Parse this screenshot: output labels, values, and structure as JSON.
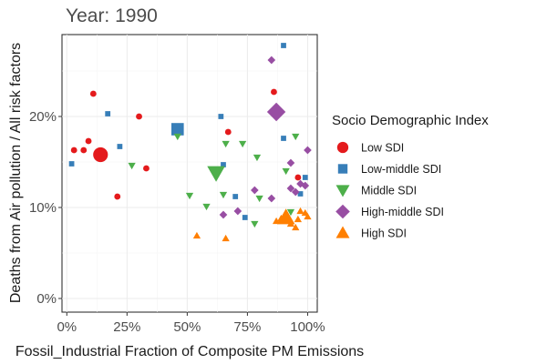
{
  "chart_data": {
    "type": "scatter",
    "title": "Year: 1990",
    "xlabel": "Fossil_Industrial Fraction of Composite PM Emissions",
    "ylabel": "Deaths from Air pollution / All risk factors",
    "xlim": [
      -0.02,
      1.04
    ],
    "ylim": [
      -0.015,
      0.29
    ],
    "x_ticks": [
      0,
      0.25,
      0.5,
      0.75,
      1.0
    ],
    "x_tick_labels": [
      "0%",
      "25%",
      "50%",
      "75%",
      "100%"
    ],
    "y_ticks": [
      0,
      0.1,
      0.2
    ],
    "y_tick_labels": [
      "0%",
      "10%",
      "20%"
    ],
    "grid": true,
    "legend": {
      "title": "Socio Demographic Index",
      "position": "right"
    },
    "series": [
      {
        "name": "Low SDI",
        "shape": "circle",
        "color": "#E41A1C",
        "points": [
          {
            "x": 0.11,
            "y": 0.225,
            "size": 1
          },
          {
            "x": 0.3,
            "y": 0.2,
            "size": 1
          },
          {
            "x": 0.03,
            "y": 0.163,
            "size": 1
          },
          {
            "x": 0.07,
            "y": 0.163,
            "size": 1
          },
          {
            "x": 0.09,
            "y": 0.173,
            "size": 1
          },
          {
            "x": 0.14,
            "y": 0.158,
            "size": 3
          },
          {
            "x": 0.33,
            "y": 0.143,
            "size": 1
          },
          {
            "x": 0.21,
            "y": 0.112,
            "size": 1
          },
          {
            "x": 0.67,
            "y": 0.183,
            "size": 1
          },
          {
            "x": 0.86,
            "y": 0.227,
            "size": 1
          },
          {
            "x": 0.96,
            "y": 0.133,
            "size": 1
          }
        ]
      },
      {
        "name": "Low-middle SDI",
        "shape": "square",
        "color": "#377EB8",
        "points": [
          {
            "x": 0.9,
            "y": 0.278,
            "size": 1
          },
          {
            "x": 0.17,
            "y": 0.203,
            "size": 1
          },
          {
            "x": 0.46,
            "y": 0.186,
            "size": 3
          },
          {
            "x": 0.64,
            "y": 0.2,
            "size": 1
          },
          {
            "x": 0.22,
            "y": 0.167,
            "size": 1
          },
          {
            "x": 0.02,
            "y": 0.148,
            "size": 1
          },
          {
            "x": 0.65,
            "y": 0.147,
            "size": 1
          },
          {
            "x": 0.7,
            "y": 0.112,
            "size": 1
          },
          {
            "x": 0.74,
            "y": 0.089,
            "size": 1
          },
          {
            "x": 0.9,
            "y": 0.176,
            "size": 1
          },
          {
            "x": 0.99,
            "y": 0.133,
            "size": 1
          },
          {
            "x": 0.97,
            "y": 0.115,
            "size": 1
          }
        ]
      },
      {
        "name": "Middle SDI",
        "shape": "triangle-down",
        "color": "#4DAF4A",
        "points": [
          {
            "x": 0.27,
            "y": 0.146,
            "size": 1
          },
          {
            "x": 0.46,
            "y": 0.178,
            "size": 1
          },
          {
            "x": 0.62,
            "y": 0.138,
            "size": 3
          },
          {
            "x": 0.66,
            "y": 0.17,
            "size": 1
          },
          {
            "x": 0.73,
            "y": 0.17,
            "size": 1
          },
          {
            "x": 0.79,
            "y": 0.155,
            "size": 1
          },
          {
            "x": 0.95,
            "y": 0.178,
            "size": 1
          },
          {
            "x": 0.91,
            "y": 0.14,
            "size": 1
          },
          {
            "x": 0.51,
            "y": 0.113,
            "size": 1
          },
          {
            "x": 0.65,
            "y": 0.114,
            "size": 1
          },
          {
            "x": 0.58,
            "y": 0.101,
            "size": 1
          },
          {
            "x": 0.8,
            "y": 0.11,
            "size": 1
          },
          {
            "x": 0.78,
            "y": 0.082,
            "size": 1
          },
          {
            "x": 0.93,
            "y": 0.095,
            "size": 1
          }
        ]
      },
      {
        "name": "High-middle SDI",
        "shape": "diamond",
        "color": "#984EA3",
        "points": [
          {
            "x": 0.85,
            "y": 0.262,
            "size": 1
          },
          {
            "x": 0.87,
            "y": 0.205,
            "size": 3
          },
          {
            "x": 1.0,
            "y": 0.163,
            "size": 1
          },
          {
            "x": 0.93,
            "y": 0.149,
            "size": 1
          },
          {
            "x": 0.78,
            "y": 0.119,
            "size": 1
          },
          {
            "x": 0.85,
            "y": 0.11,
            "size": 1
          },
          {
            "x": 0.93,
            "y": 0.121,
            "size": 1
          },
          {
            "x": 0.95,
            "y": 0.117,
            "size": 1
          },
          {
            "x": 0.97,
            "y": 0.126,
            "size": 1
          },
          {
            "x": 0.99,
            "y": 0.124,
            "size": 1
          },
          {
            "x": 0.65,
            "y": 0.092,
            "size": 1
          },
          {
            "x": 0.71,
            "y": 0.096,
            "size": 1
          }
        ]
      },
      {
        "name": "High SDI",
        "shape": "triangle-up",
        "color": "#FF7F00",
        "points": [
          {
            "x": 0.54,
            "y": 0.069,
            "size": 1
          },
          {
            "x": 0.66,
            "y": 0.066,
            "size": 1
          },
          {
            "x": 0.87,
            "y": 0.085,
            "size": 1
          },
          {
            "x": 0.89,
            "y": 0.088,
            "size": 1
          },
          {
            "x": 0.91,
            "y": 0.089,
            "size": 3
          },
          {
            "x": 0.93,
            "y": 0.082,
            "size": 1
          },
          {
            "x": 0.95,
            "y": 0.078,
            "size": 1
          },
          {
            "x": 0.96,
            "y": 0.087,
            "size": 1
          },
          {
            "x": 0.97,
            "y": 0.096,
            "size": 1
          },
          {
            "x": 0.99,
            "y": 0.094,
            "size": 1
          },
          {
            "x": 1.0,
            "y": 0.09,
            "size": 1
          }
        ]
      }
    ]
  }
}
